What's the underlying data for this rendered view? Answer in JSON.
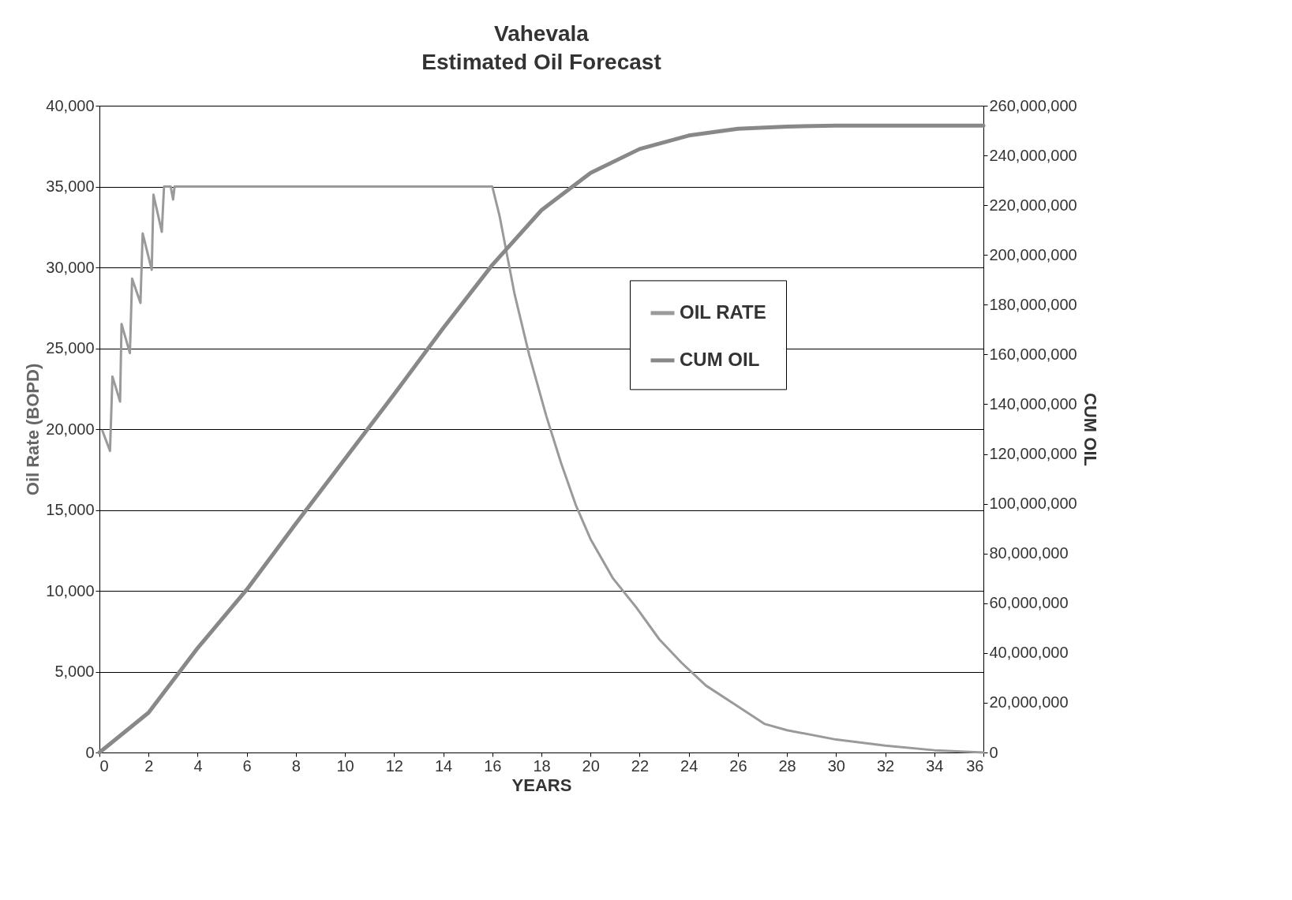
{
  "chart_data": {
    "type": "line",
    "title": "Vahevala",
    "subtitle": "Estimated Oil Forecast",
    "xlabel": "YEARS",
    "ylabel": "Oil Rate (BOPD)",
    "y2label": "CUM OIL",
    "xlim": [
      0,
      36
    ],
    "xticks": [
      0,
      2,
      4,
      6,
      8,
      10,
      12,
      14,
      16,
      18,
      20,
      22,
      24,
      26,
      28,
      30,
      32,
      34,
      36
    ],
    "ylim": [
      0,
      40000
    ],
    "yticks": [
      0,
      {
        "value": 5000,
        "label": "5,000"
      },
      {
        "value": 10000,
        "label": "10,000"
      },
      {
        "value": 15000,
        "label": "15,000"
      },
      {
        "value": 20000,
        "label": "20,000"
      },
      {
        "value": 25000,
        "label": "25,000"
      },
      {
        "value": 30000,
        "label": "30,000"
      },
      {
        "value": 35000,
        "label": "35,000"
      },
      {
        "value": 40000,
        "label": "40,000"
      }
    ],
    "y2lim": [
      0,
      260000000
    ],
    "y2ticks": [
      0,
      {
        "value": 20000000,
        "label": "20,000,000"
      },
      {
        "value": 40000000,
        "label": "40,000,000"
      },
      {
        "value": 60000000,
        "label": "60,000,000"
      },
      {
        "value": 80000000,
        "label": "80,000,000"
      },
      {
        "value": 100000000,
        "label": "100,000,000"
      },
      {
        "value": 120000000,
        "label": "120,000,000"
      },
      {
        "value": 140000000,
        "label": "140,000,000"
      },
      {
        "value": 160000000,
        "label": "160,000,000"
      },
      {
        "value": 180000000,
        "label": "180,000,000"
      },
      {
        "value": 200000000,
        "label": "200,000,000"
      },
      {
        "value": 220000000,
        "label": "220,000,000"
      },
      {
        "value": 240000000,
        "label": "240,000,000"
      },
      {
        "value": 260000000,
        "label": "260,000,000"
      }
    ],
    "grid": "y",
    "legend": "right",
    "marker": "none",
    "line_style": "solid",
    "series": [
      {
        "name": "OIL RATE",
        "color": "#9a9a9a",
        "x": [
          0.12,
          0.43,
          0.53,
          0.84,
          0.9,
          1.24,
          1.33,
          1.67,
          1.76,
          2.13,
          2.2,
          2.54,
          2.63,
          2.9,
          3.0,
          3.06,
          5,
          8,
          10,
          12,
          14,
          16.0,
          16.3,
          16.9,
          17.5,
          18.2,
          18.8,
          19.4,
          20.0,
          20.9,
          21.9,
          22.8,
          23.7,
          24.7,
          25.9,
          27.1,
          28.0,
          30,
          32,
          34,
          36
        ],
        "values": [
          19900,
          18650,
          23250,
          21700,
          26500,
          24700,
          29300,
          27800,
          32100,
          29850,
          34500,
          32200,
          35000,
          35000,
          34200,
          35000,
          35000,
          35000,
          35000,
          35000,
          35000,
          35000,
          33150,
          28400,
          24600,
          20800,
          17900,
          15300,
          13200,
          10800,
          8900,
          7000,
          5560,
          4140,
          2950,
          1760,
          1380,
          800,
          430,
          140,
          0
        ]
      },
      {
        "name": "CUM OIL",
        "color": "#888888",
        "axis": "y2",
        "x": [
          0,
          2,
          4,
          6,
          8,
          10,
          12,
          14,
          16,
          18,
          20,
          22,
          24,
          26,
          28,
          30,
          32,
          34,
          36
        ],
        "values": [
          0,
          16000000,
          42000000,
          65500000,
          92000000,
          118000000,
          144000000,
          170600000,
          196000000,
          218000000,
          233000000,
          242600000,
          248000000,
          250700000,
          251600000,
          252000000,
          252000000,
          252000000,
          252000000
        ]
      }
    ]
  }
}
